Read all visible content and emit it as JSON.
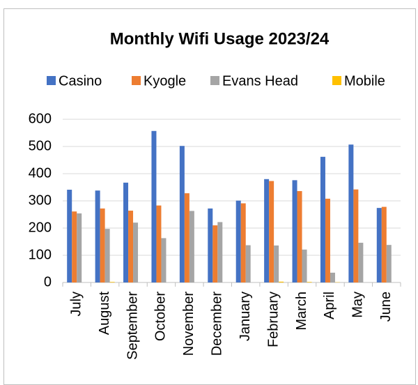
{
  "chart_data": {
    "type": "bar",
    "title": "Monthly Wifi Usage 2023/24",
    "categories": [
      "July",
      "August",
      "September",
      "October",
      "November",
      "December",
      "January",
      "February",
      "March",
      "April",
      "May",
      "June"
    ],
    "series": [
      {
        "name": "Casino",
        "color": "#4472c4",
        "values": [
          341,
          338,
          367,
          557,
          502,
          272,
          301,
          380,
          376,
          462,
          507,
          274
        ]
      },
      {
        "name": "Kyogle",
        "color": "#ed7d31",
        "values": [
          261,
          272,
          264,
          283,
          328,
          210,
          291,
          373,
          336,
          308,
          342,
          278
        ]
      },
      {
        "name": "Evans Head",
        "color": "#a5a5a5",
        "values": [
          254,
          197,
          220,
          163,
          263,
          222,
          137,
          136,
          121,
          36,
          146,
          138
        ]
      },
      {
        "name": "Mobile",
        "color": "#ffc000",
        "values": [
          0,
          2,
          0,
          0,
          0,
          0,
          0,
          3,
          2,
          1,
          0,
          0
        ]
      }
    ],
    "ylim": [
      0,
      600
    ],
    "yticks": [
      0,
      100,
      200,
      300,
      400,
      500,
      600
    ],
    "grid": true,
    "legend": "top"
  }
}
